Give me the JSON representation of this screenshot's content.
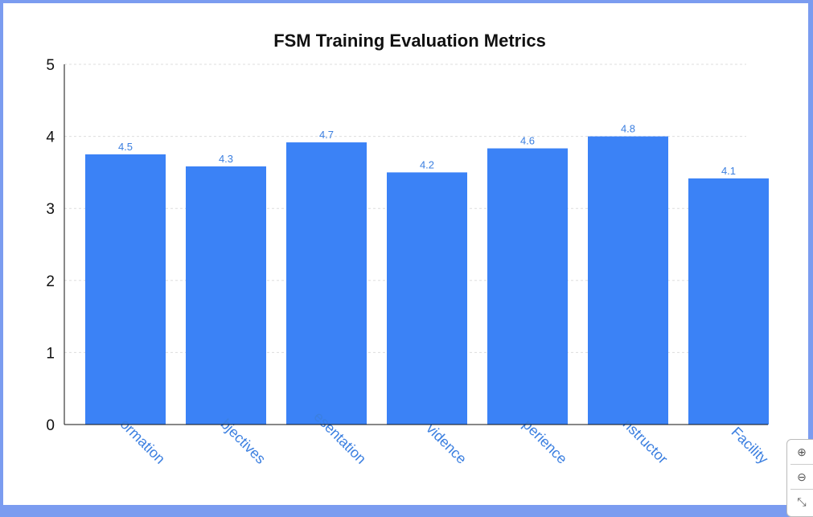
{
  "chart_data": {
    "type": "bar",
    "title": "FSM Training Evaluation Metrics",
    "categories": [
      "ormation",
      "bjectives",
      "esentation",
      "vidence",
      "perience",
      "nstructor",
      "Facility"
    ],
    "values": [
      4.5,
      4.3,
      4.7,
      4.2,
      4.6,
      4.8,
      4.1
    ],
    "yticks": [
      "0",
      "1",
      "2",
      "3",
      "4",
      "5"
    ],
    "ylim": [
      0,
      5
    ],
    "grid": true,
    "bar_color": "#3b82f6",
    "label_color": "#3b7fe0"
  },
  "controls": {
    "zoom_in_icon": "zoom-in",
    "zoom_out_icon": "zoom-out",
    "reset_icon": "collapse"
  }
}
